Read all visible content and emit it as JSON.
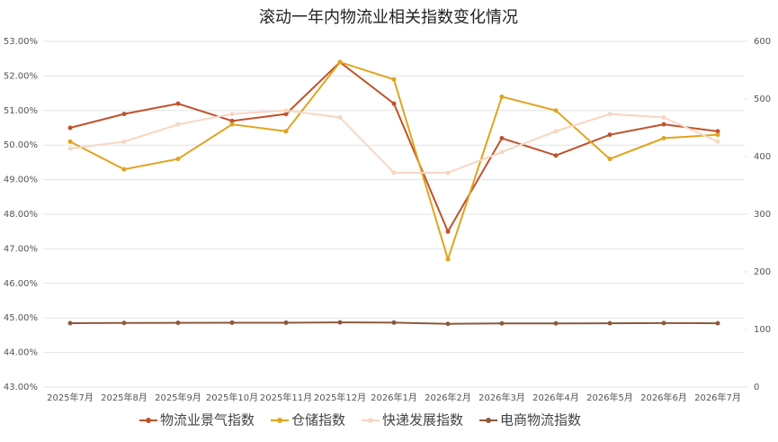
{
  "chart_data": {
    "type": "line",
    "title": "滚动一年内物流业相关指数变化情况",
    "categories": [
      "2025年7月",
      "2025年8月",
      "2025年9月",
      "2025年10月",
      "2025年11月",
      "2025年12月",
      "2026年1月",
      "2026年2月",
      "2026年3月",
      "2026年4月",
      "2026年5月",
      "2026年6月",
      "2026年7月"
    ],
    "series": [
      {
        "name": "物流业景气指数",
        "color": "#c0522a",
        "values": [
          50.5,
          50.9,
          51.2,
          50.7,
          50.9,
          52.4,
          51.2,
          47.5,
          50.2,
          49.7,
          50.3,
          50.6,
          50.4
        ]
      },
      {
        "name": "仓储指数",
        "color": "#e0a41e",
        "values": [
          50.1,
          49.3,
          49.6,
          50.6,
          50.4,
          52.4,
          51.9,
          46.7,
          51.4,
          51.0,
          49.6,
          50.2,
          50.3
        ]
      },
      {
        "name": "快递发展指数",
        "color": "#f6d7c3",
        "axis": "y2",
        "values": [
          414,
          426,
          456,
          474,
          480,
          468,
          372,
          372,
          408,
          444,
          474,
          468,
          426
        ]
      },
      {
        "name": "电商物流指数",
        "color": "#8a5a3c",
        "axis": "y2",
        "values": [
          111,
          111.3,
          111.6,
          111.8,
          111.8,
          112.3,
          112,
          109.8,
          110.5,
          110.6,
          110.7,
          111.2,
          110.8
        ]
      }
    ],
    "ylim": [
      43,
      53
    ],
    "yticks": [
      {
        "value": 43,
        "label": "43.00%"
      },
      {
        "value": 44,
        "label": "44.00%"
      },
      {
        "value": 45,
        "label": "45.00%"
      },
      {
        "value": 46,
        "label": "46.00%"
      },
      {
        "value": 47,
        "label": "47.00%"
      },
      {
        "value": 48,
        "label": "48.00%"
      },
      {
        "value": 49,
        "label": "49.00%"
      },
      {
        "value": 50,
        "label": "50.00%"
      },
      {
        "value": 51,
        "label": "51.00%"
      },
      {
        "value": 52,
        "label": "52.00%"
      },
      {
        "value": 53,
        "label": "53.00%"
      }
    ],
    "y2lim": [
      0,
      600
    ],
    "y2ticks": [
      0,
      100,
      200,
      300,
      400,
      500,
      600
    ],
    "grid": true,
    "legend": "bottom"
  }
}
